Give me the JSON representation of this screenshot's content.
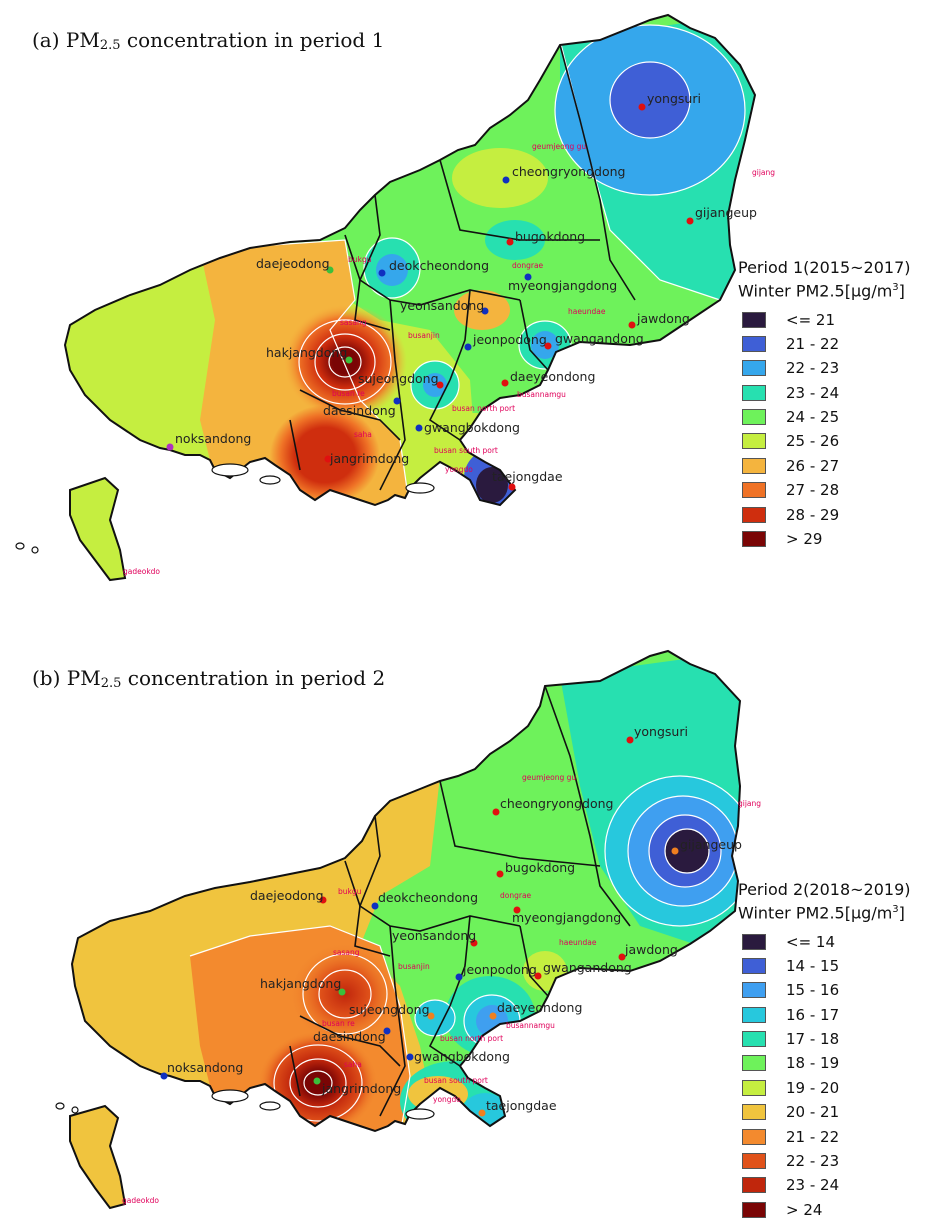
{
  "panels": [
    {
      "title_main": "(a) PM",
      "title_sub": "2.5",
      "title_rest": " concentration in period 1",
      "legend_line1": "Period 1(2015~2017)",
      "legend_line2_pre": "Winter PM2.5[μg/m",
      "legend_line2_sup": "3",
      "legend_line2_post": "]",
      "legend": [
        {
          "label": "<= 21",
          "color": "#2a1a3e"
        },
        {
          "label": "21 - 22",
          "color": "#3f5fd6"
        },
        {
          "label": "22 - 23",
          "color": "#35a7ec"
        },
        {
          "label": "23 - 24",
          "color": "#27e0b0"
        },
        {
          "label": "24 - 25",
          "color": "#6ef25b"
        },
        {
          "label": "25 - 26",
          "color": "#c5ee40"
        },
        {
          "label": "26 - 27",
          "color": "#f4b43e"
        },
        {
          "label": "27 - 28",
          "color": "#ef7226"
        },
        {
          "label": "28 - 29",
          "color": "#cf2e0e"
        },
        {
          "label": "> 29",
          "color": "#7a0505"
        }
      ],
      "stations": [
        {
          "name": "yongsuri",
          "dot": "#e01010"
        },
        {
          "name": "cheongryongdong",
          "dot": "#1030c0"
        },
        {
          "name": "gijangeup",
          "dot": "#e01010"
        },
        {
          "name": "bugokdong",
          "dot": "#e01010"
        },
        {
          "name": "daejeodong",
          "dot": "#3bbf3b"
        },
        {
          "name": "deokcheondong",
          "dot": "#1030c0"
        },
        {
          "name": "myeongjangdong",
          "dot": "#1030c0"
        },
        {
          "name": "yeonsandong",
          "dot": "#1030c0"
        },
        {
          "name": "jawdong",
          "dot": "#e01010"
        },
        {
          "name": "hakjangdong",
          "dot": "#3bbf3b"
        },
        {
          "name": "jeonpodong",
          "dot": "#1030c0"
        },
        {
          "name": "gwangandong",
          "dot": "#e01010"
        },
        {
          "name": "sujeongdong",
          "dot": "#e01010"
        },
        {
          "name": "daeyeondong",
          "dot": "#e01010"
        },
        {
          "name": "daesindong",
          "dot": "#1030c0"
        },
        {
          "name": "gwangbokdong",
          "dot": "#1030c0"
        },
        {
          "name": "noksandong",
          "dot": "#b030c0"
        },
        {
          "name": "jangrimdong",
          "dot": "#e01010"
        },
        {
          "name": "taejongdae",
          "dot": "#e01010"
        }
      ],
      "sites": [
        "geumjeong gu",
        "gijang",
        "bukgu",
        "dongrae",
        "sasang",
        "busanjin",
        "haeundae",
        "busan re",
        "busannamgu",
        "busan north port",
        "saha",
        "busan south port",
        "yongdo",
        "gadeokdo"
      ]
    },
    {
      "title_main": "(b) PM",
      "title_sub": "2.5",
      "title_rest": " concentration in period 2",
      "legend_line1": "Period 2(2018~2019)",
      "legend_line2_pre": "Winter PM2.5[μg/m",
      "legend_line2_sup": "3",
      "legend_line2_post": "]",
      "legend": [
        {
          "label": "<= 14",
          "color": "#2a1a3e"
        },
        {
          "label": "14 - 15",
          "color": "#3f5fd6"
        },
        {
          "label": "15 - 16",
          "color": "#3f9ff0"
        },
        {
          "label": "16 - 17",
          "color": "#27c8dd"
        },
        {
          "label": "17 - 18",
          "color": "#27e0b0"
        },
        {
          "label": "18 - 19",
          "color": "#6ef25b"
        },
        {
          "label": "19 - 20",
          "color": "#c5ee40"
        },
        {
          "label": "20 - 21",
          "color": "#f0c43e"
        },
        {
          "label": "21 - 22",
          "color": "#f38a2e"
        },
        {
          "label": "22 - 23",
          "color": "#e0521a"
        },
        {
          "label": "23 - 24",
          "color": "#c0260c"
        },
        {
          "label": "> 24",
          "color": "#7a0505"
        }
      ],
      "stations": [
        {
          "name": "yongsuri",
          "dot": "#e01010"
        },
        {
          "name": "cheongryongdong",
          "dot": "#e01010"
        },
        {
          "name": "gijangeup",
          "dot": "#f08020"
        },
        {
          "name": "bugokdong",
          "dot": "#e01010"
        },
        {
          "name": "daejeodong",
          "dot": "#e01010"
        },
        {
          "name": "deokcheondong",
          "dot": "#1030c0"
        },
        {
          "name": "myeongjangdong",
          "dot": "#e01010"
        },
        {
          "name": "yeonsandong",
          "dot": "#e01010"
        },
        {
          "name": "jawdong",
          "dot": "#e01010"
        },
        {
          "name": "hakjangdong",
          "dot": "#3bbf3b"
        },
        {
          "name": "jeonpodong",
          "dot": "#1030c0"
        },
        {
          "name": "gwangandong",
          "dot": "#e01010"
        },
        {
          "name": "sujeongdong",
          "dot": "#f08020"
        },
        {
          "name": "daeyeondong",
          "dot": "#f08020"
        },
        {
          "name": "daesindong",
          "dot": "#1030c0"
        },
        {
          "name": "gwangbokdong",
          "dot": "#1030c0"
        },
        {
          "name": "noksandong",
          "dot": "#1030c0"
        },
        {
          "name": "jangrimdong",
          "dot": "#3bbf3b"
        },
        {
          "name": "taejongdae",
          "dot": "#f08020"
        }
      ],
      "sites": [
        "geumjeong gu",
        "gijang",
        "bukgu",
        "dongrae",
        "sasang",
        "busanjin",
        "haeundae",
        "busan re",
        "busannamgu",
        "busan north port",
        "saha",
        "busan south port",
        "yongdo",
        "gadeokdo"
      ]
    }
  ]
}
